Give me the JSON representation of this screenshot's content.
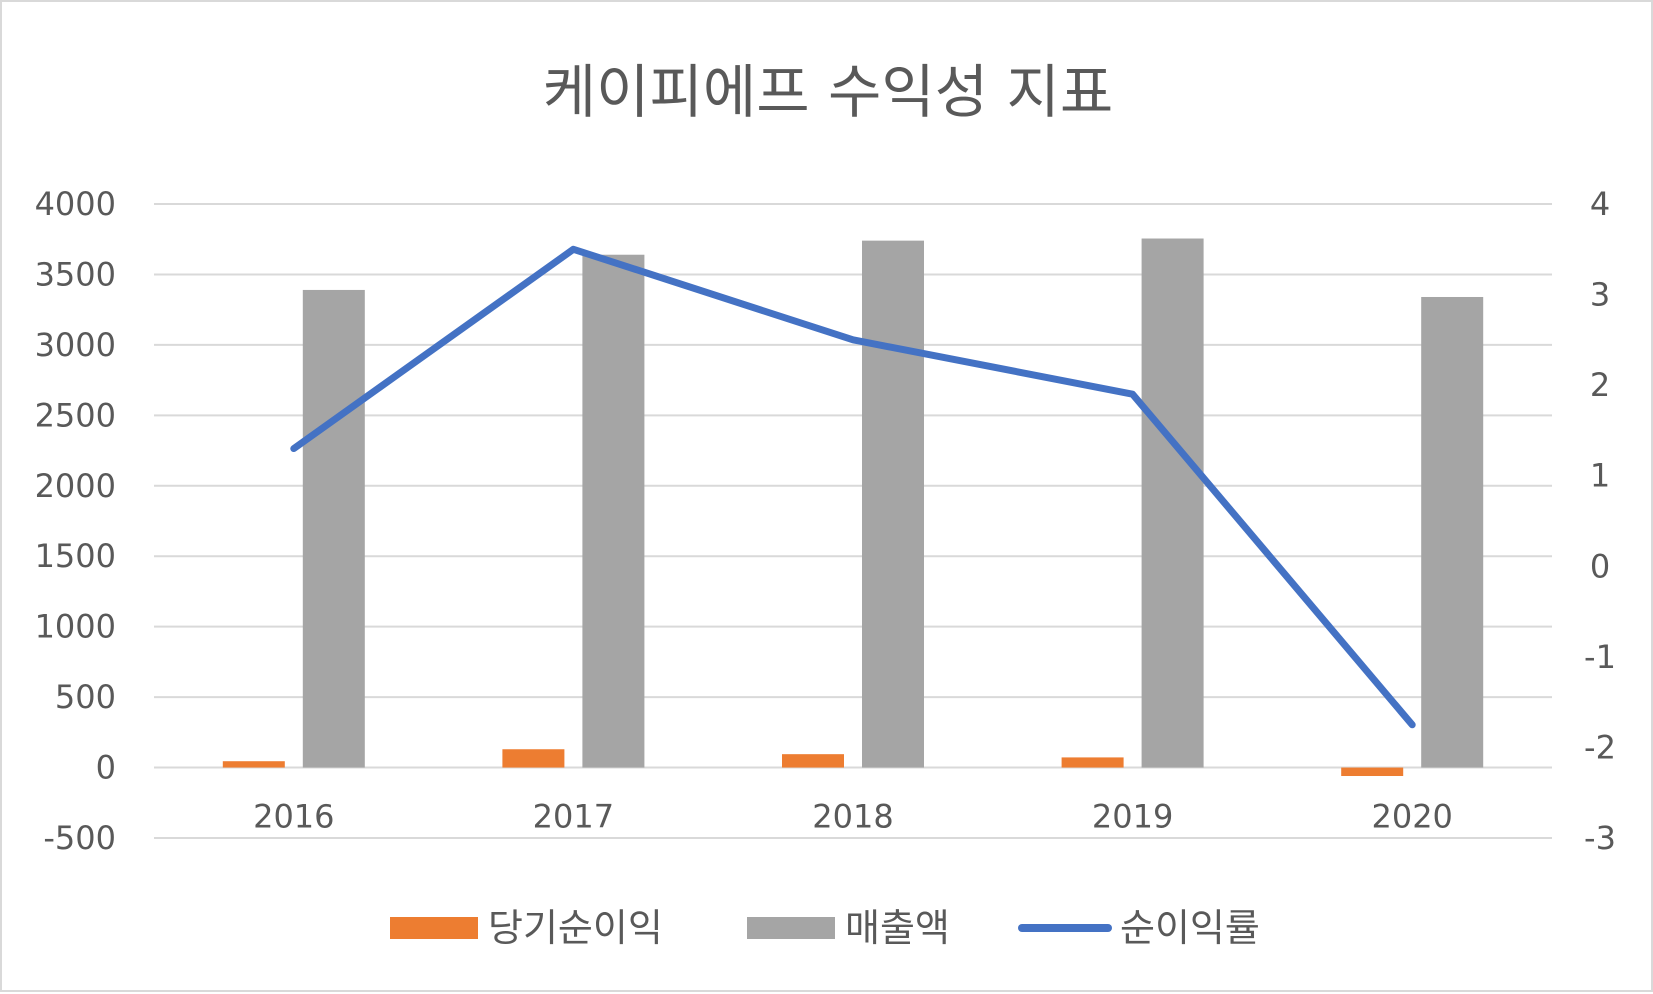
{
  "chart_data": {
    "type": "bar",
    "title": "케이피에프 수익성 지표",
    "categories": [
      "2016",
      "2017",
      "2018",
      "2019",
      "2020"
    ],
    "series": [
      {
        "name": "당기순이익",
        "type": "bar",
        "axis": "left",
        "color": "#ED7D31",
        "values": [
          45,
          130,
          95,
          72,
          -60
        ]
      },
      {
        "name": "매출액",
        "type": "bar",
        "axis": "left",
        "color": "#A5A5A5",
        "values": [
          3390,
          3640,
          3740,
          3755,
          3340
        ]
      },
      {
        "name": "순이익률",
        "type": "line",
        "axis": "right",
        "color": "#4472C4",
        "values": [
          1.3,
          3.5,
          2.5,
          1.9,
          -1.75
        ]
      }
    ],
    "y_left": {
      "min": -500,
      "max": 4000,
      "ticks": [
        "-500",
        "0",
        "500",
        "1000",
        "1500",
        "2000",
        "2500",
        "3000",
        "3500",
        "4000"
      ]
    },
    "y_right": {
      "min": -3,
      "max": 4,
      "ticks": [
        "-3",
        "-2",
        "-1",
        "0",
        "1",
        "2",
        "3",
        "4"
      ]
    },
    "grid": true,
    "legend": "bottom"
  }
}
